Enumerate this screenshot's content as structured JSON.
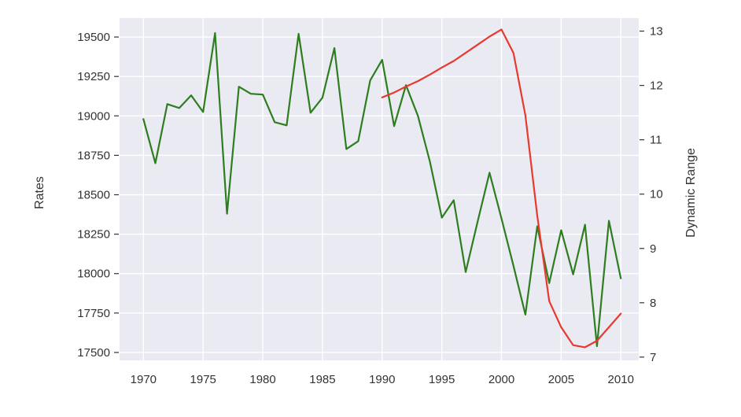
{
  "chart_data": {
    "type": "line",
    "x": [
      1970,
      1971,
      1972,
      1973,
      1974,
      1975,
      1976,
      1977,
      1978,
      1979,
      1980,
      1981,
      1982,
      1983,
      1984,
      1985,
      1986,
      1987,
      1988,
      1989,
      1990,
      1991,
      1992,
      1993,
      1994,
      1995,
      1996,
      1997,
      1998,
      1999,
      2000,
      2001,
      2002,
      2003,
      2004,
      2005,
      2006,
      2007,
      2008,
      2009,
      2010
    ],
    "xticks": [
      1970,
      1975,
      1980,
      1985,
      1990,
      1995,
      2000,
      2005,
      2010
    ],
    "ylabel": "Rates",
    "y2label": "Dynamic Range",
    "ylim": [
      17450,
      19620
    ],
    "y2lim": [
      6.94,
      13.24
    ],
    "yticks": [
      17500,
      17750,
      18000,
      18250,
      18500,
      18750,
      19000,
      19250,
      19500
    ],
    "y2ticks": [
      7,
      8,
      9,
      10,
      11,
      12,
      13
    ],
    "grid": true,
    "series": [
      {
        "axis": "left",
        "color": "#2e7d1f",
        "x": [
          1970,
          1971,
          1972,
          1973,
          1974,
          1975,
          1976,
          1977,
          1978,
          1979,
          1980,
          1981,
          1982,
          1983,
          1984,
          1985,
          1986,
          1987,
          1988,
          1989,
          1990,
          1991,
          1992,
          1993,
          1994,
          1995,
          1996,
          1997,
          1998,
          1999,
          2000,
          2001,
          2002,
          2003,
          2004,
          2005,
          2006,
          2007,
          2008,
          2009,
          2010
        ],
        "values": [
          18980,
          18700,
          19075,
          19050,
          19130,
          19025,
          19525,
          18380,
          19185,
          19140,
          19135,
          18960,
          18940,
          19520,
          19020,
          19115,
          19430,
          18790,
          18840,
          19225,
          19355,
          18935,
          19195,
          19000,
          18710,
          18355,
          18465,
          18010,
          18330,
          18640,
          18350,
          18050,
          17740,
          18300,
          17940,
          18275,
          17995,
          18310,
          17540,
          18335,
          17970
        ]
      },
      {
        "axis": "right",
        "color": "#e8392e",
        "x": [
          1990,
          1991,
          1992,
          1993,
          1994,
          1995,
          1996,
          1997,
          1998,
          1999,
          2000,
          2001,
          2002,
          2003,
          2004,
          2005,
          2006,
          2007,
          2008,
          2009,
          2010
        ],
        "values": [
          11.78,
          11.87,
          11.98,
          12.08,
          12.2,
          12.33,
          12.45,
          12.6,
          12.75,
          12.9,
          13.03,
          12.6,
          11.45,
          9.6,
          8.03,
          7.55,
          7.22,
          7.18,
          7.3,
          7.55,
          7.8
        ]
      }
    ]
  }
}
